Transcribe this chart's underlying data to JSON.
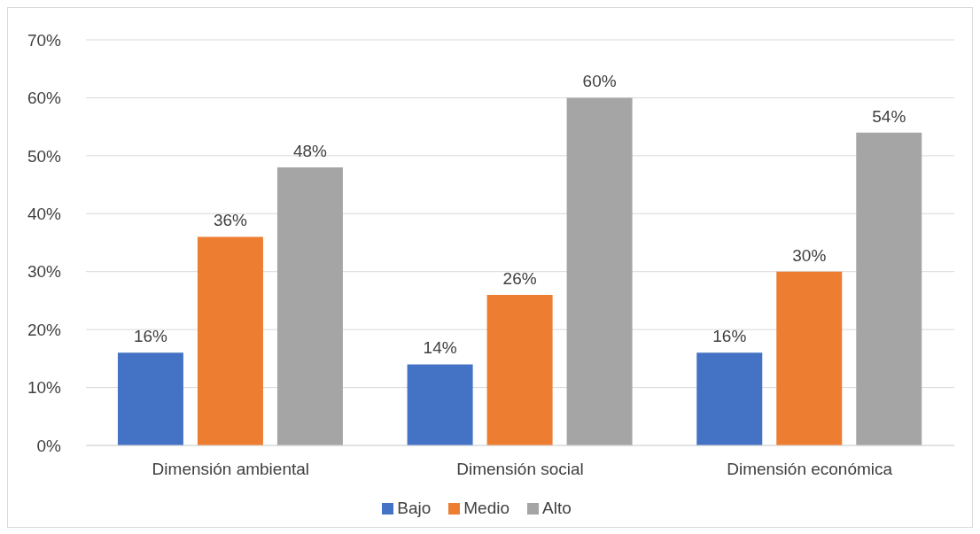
{
  "chart_data": {
    "type": "bar",
    "categories": [
      "Dimensión ambiental",
      "Dimensión social",
      "Dimensión económica"
    ],
    "series": [
      {
        "name": "Bajo",
        "color": "#4472c4",
        "values": [
          16,
          14,
          16
        ],
        "value_labels": [
          "16%",
          "14%",
          "16%"
        ]
      },
      {
        "name": "Medio",
        "color": "#ed7d31",
        "values": [
          36,
          26,
          30
        ],
        "value_labels": [
          "36%",
          "26%",
          "30%"
        ]
      },
      {
        "name": "Alto",
        "color": "#a5a5a5",
        "values": [
          48,
          60,
          54
        ],
        "value_labels": [
          "48%",
          "60%",
          "54%"
        ]
      }
    ],
    "ylim": [
      0,
      70
    ],
    "yticks": [
      {
        "value": 0,
        "label": "0%"
      },
      {
        "value": 10,
        "label": "10%"
      },
      {
        "value": 20,
        "label": "20%"
      },
      {
        "value": 30,
        "label": "30%"
      },
      {
        "value": 40,
        "label": "40%"
      },
      {
        "value": 50,
        "label": "50%"
      },
      {
        "value": 60,
        "label": "60%"
      },
      {
        "value": 70,
        "label": "70%"
      }
    ],
    "grid": "y",
    "legend": "bottom"
  }
}
